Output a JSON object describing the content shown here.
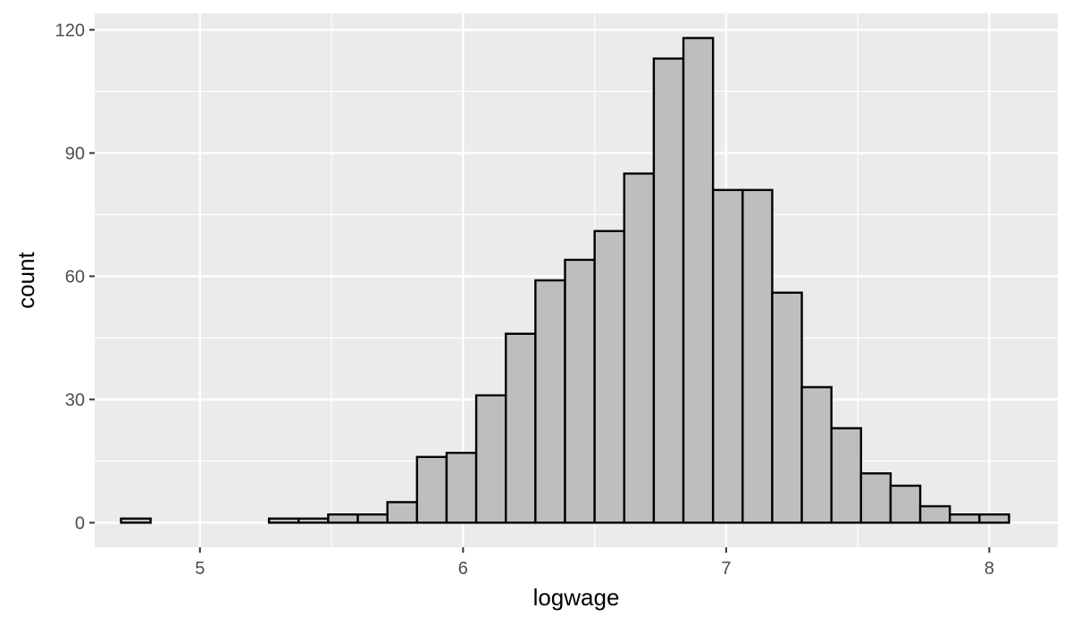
{
  "chart_data": {
    "type": "bar",
    "subtype": "histogram",
    "xlabel": "logwage",
    "ylabel": "count",
    "xlim": [
      4.6,
      8.26
    ],
    "ylim": [
      -6,
      124
    ],
    "x_ticks": [
      5,
      6,
      7,
      8
    ],
    "y_ticks": [
      0,
      30,
      60,
      90,
      120
    ],
    "bin_width": 0.1125,
    "bin_start": 4.7,
    "values": [
      1,
      0,
      0,
      0,
      0,
      1,
      1,
      2,
      2,
      5,
      16,
      17,
      31,
      46,
      59,
      64,
      71,
      85,
      113,
      118,
      81,
      81,
      56,
      33,
      23,
      12,
      9,
      4,
      2,
      2
    ],
    "grid": true,
    "legend": "none"
  },
  "colors": {
    "panel_background": "#ebebeb",
    "grid_major": "#ffffff",
    "bar_fill": "#bebebe",
    "bar_outline": "#000000",
    "tick_text": "#4d4d4d",
    "axis_title_text": "#000000"
  }
}
